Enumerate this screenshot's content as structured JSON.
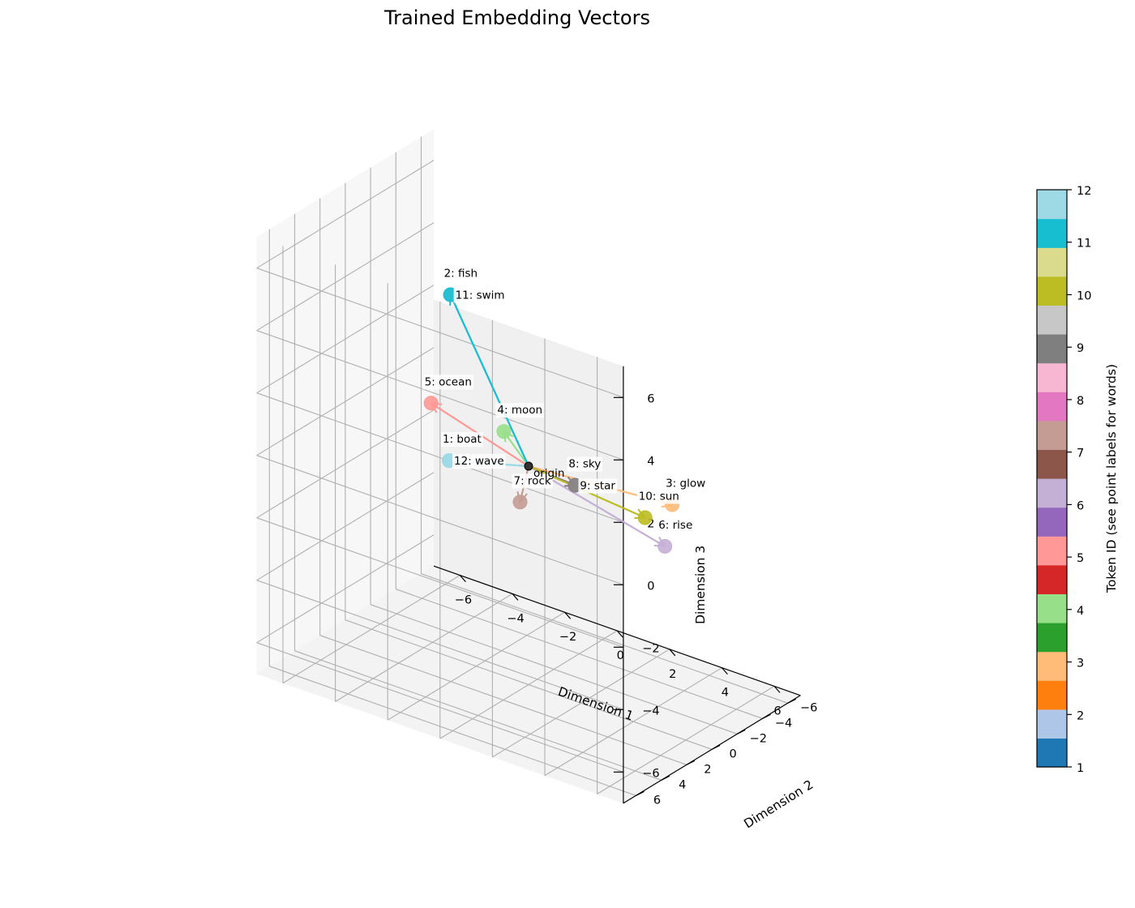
{
  "chart_data": {
    "type": "scatter",
    "title": "Trained Embedding Vectors",
    "xlabel": "Dimension 1",
    "ylabel": "Dimension 2",
    "zlabel": "Dimension 3",
    "xlim": [
      -7,
      7
    ],
    "ylim": [
      -7,
      7
    ],
    "zlim": [
      -7,
      7
    ],
    "xticks": [
      -6,
      -4,
      -2,
      0,
      2,
      4,
      6
    ],
    "yticks": [
      -6,
      -4,
      -2,
      0,
      2,
      4,
      6
    ],
    "zticks": [
      -6,
      -4,
      -2,
      0,
      2,
      4,
      6
    ],
    "grid": true,
    "origin_label": "origin",
    "points": [
      {
        "id": 1,
        "label": "1: boat",
        "x": -4.0,
        "y": -2.0,
        "z": -1.5,
        "color": "#9edae5"
      },
      {
        "id": 2,
        "label": "2: fish",
        "x": -2.5,
        "y": 1.0,
        "z": 5.0,
        "color": "#aec7e8"
      },
      {
        "id": 3,
        "label": "3: glow",
        "x": 5.0,
        "y": -1.0,
        "z": 0.0,
        "color": "#ffbb78"
      },
      {
        "id": 4,
        "label": "4: moon",
        "x": 0.5,
        "y": 3.0,
        "z": 2.0,
        "color": "#98df8a"
      },
      {
        "id": 5,
        "label": "5: ocean",
        "x": -3.0,
        "y": 1.5,
        "z": 1.5,
        "color": "#ff9896"
      },
      {
        "id": 6,
        "label": "6: rise",
        "x": 4.0,
        "y": -2.5,
        "z": -2.0,
        "color": "#c5b0d5"
      },
      {
        "id": 7,
        "label": "7: rock",
        "x": -2.5,
        "y": -4.5,
        "z": -3.0,
        "color": "#c49c94"
      },
      {
        "id": 8,
        "label": "8: sky",
        "x": 2.5,
        "y": 1.5,
        "z": 0.5,
        "color": "#f7b6d2"
      },
      {
        "id": 9,
        "label": "9: star",
        "x": 2.5,
        "y": 1.5,
        "z": 0.5,
        "color": "#7f7f7f"
      },
      {
        "id": 10,
        "label": "10: sun",
        "x": 3.0,
        "y": -3.0,
        "z": -1.5,
        "color": "#bcbd22"
      },
      {
        "id": 11,
        "label": "11: swim",
        "x": -2.5,
        "y": 1.0,
        "z": 5.0,
        "color": "#17becf"
      },
      {
        "id": 12,
        "label": "12: wave",
        "x": -4.0,
        "y": -2.0,
        "z": -1.5,
        "color": "#9edae5"
      }
    ],
    "colorbar": {
      "label": "Token ID (see point labels for words)",
      "min": 1,
      "max": 12,
      "ticks": [
        1,
        2,
        3,
        4,
        5,
        6,
        7,
        8,
        9,
        10,
        11,
        12
      ],
      "colors": [
        "#1f77b4",
        "#aec7e8",
        "#ff7f0e",
        "#ffbb78",
        "#2ca02c",
        "#98df8a",
        "#d62728",
        "#ff9896",
        "#9467bd",
        "#c5b0d5",
        "#8c564b",
        "#c49c94",
        "#e377c2",
        "#f7b6d2",
        "#7f7f7f",
        "#c7c7c7",
        "#bcbd22",
        "#dbdb8d",
        "#17becf",
        "#9edae5"
      ]
    }
  }
}
